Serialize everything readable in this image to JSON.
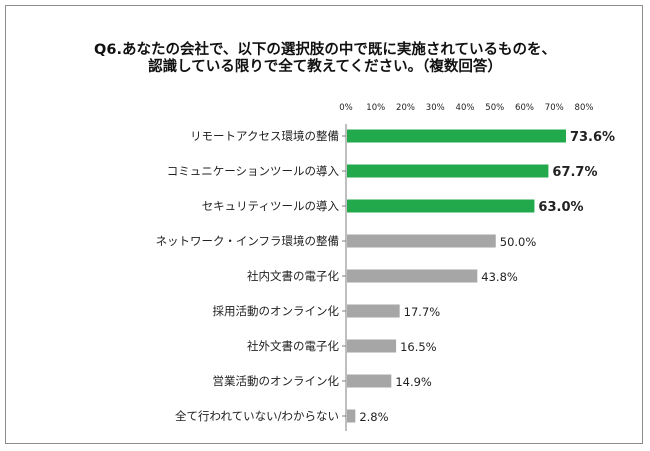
{
  "chart_data": {
    "type": "bar",
    "orientation": "horizontal",
    "title_line1": "Q6.あなたの会社で、以下の選択肢の中で既に実施されているものを、",
    "title_line2": "認識している限りで全て教えてください。（複数回答）",
    "xlim": [
      0,
      80
    ],
    "xticks": [
      "0%",
      "10%",
      "20%",
      "30%",
      "40%",
      "50%",
      "60%",
      "70%",
      "80%"
    ],
    "grid": false,
    "categories": [
      "リモートアクセス環境の整備",
      "コミュニケーションツールの導入",
      "セキュリティツールの導入",
      "ネットワーク・インフラ環境の整備",
      "社内文書の電子化",
      "採用活動のオンライン化",
      "社外文書の電子化",
      "営業活動のオンライン化",
      "全て行われていない/わからない"
    ],
    "values": [
      73.6,
      67.7,
      63.0,
      50.0,
      43.8,
      17.7,
      16.5,
      14.9,
      2.8
    ],
    "value_labels": [
      "73.6%",
      "67.7%",
      "63.0%",
      "50.0%",
      "43.8%",
      "17.7%",
      "16.5%",
      "14.9%",
      "2.8%"
    ],
    "highlight_count": 3,
    "colors": {
      "highlight": "#22a94b",
      "normal": "#a6a6a6",
      "axis": "#7f7f7f",
      "text": "#222222"
    }
  }
}
